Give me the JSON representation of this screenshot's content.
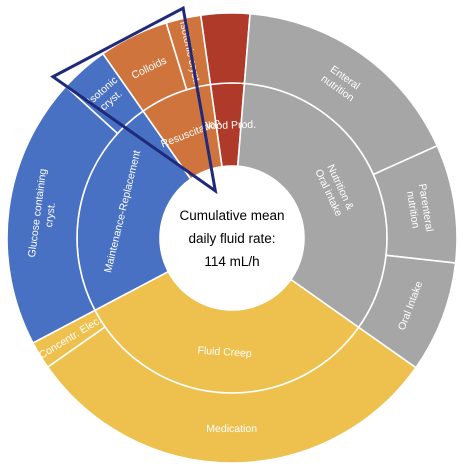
{
  "chart_data": {
    "type": "sunburst",
    "center_label": [
      "Cumulative mean",
      "daily fluid rate:",
      "114 mL/h"
    ],
    "colors": {
      "resuscitation": "#D0743E",
      "blood": "#B03A2A",
      "nutrition": "#A6A6A6",
      "fluid_creep": "#EEC14F",
      "maintenance": "#4871C4",
      "highlight_outline": "#1F2A7A"
    },
    "inner_ring": [
      {
        "id": "blood",
        "label": "Blood Prod.",
        "share": 3.5,
        "color": "#B03A2A"
      },
      {
        "id": "nutrition",
        "label": "Nutrition & Oral intake",
        "share": 33.5,
        "color": "#A6A6A6"
      },
      {
        "id": "fluid_creep",
        "label": "Fluid Creep",
        "share": 32.5,
        "color": "#EEC14F"
      },
      {
        "id": "maintenance",
        "label": "Maintenance-Replacement",
        "share": 23.0,
        "color": "#4871C4"
      },
      {
        "id": "resuscitation",
        "label": "Resuscitation",
        "share": 7.5,
        "color": "#D0743E"
      }
    ],
    "outer_ring": [
      {
        "label": "",
        "parent": "blood",
        "share": 3.5,
        "color": "#B03A2A"
      },
      {
        "label": "Enteral nutrition",
        "parent": "nutrition",
        "share": 17.0,
        "color": "#A6A6A6"
      },
      {
        "label": "Parenteral nutrition",
        "parent": "nutrition",
        "share": 8.5,
        "color": "#A6A6A6"
      },
      {
        "label": "Oral Intake",
        "parent": "nutrition",
        "share": 8.0,
        "color": "#A6A6A6"
      },
      {
        "label": "Medication",
        "parent": "fluid_creep",
        "share": 30.5,
        "color": "#EEC14F"
      },
      {
        "label": "Concentr. Elec.",
        "parent": "fluid_creep",
        "share": 2.0,
        "color": "#EEC14F"
      },
      {
        "label": "Glucose containing cryst.",
        "parent": "maintenance",
        "share": 19.5,
        "color": "#4871C4"
      },
      {
        "label": "Isotonic cryst.",
        "parent": "maintenance",
        "share": 3.5,
        "color": "#4871C4"
      },
      {
        "label": "Colloids",
        "parent": "resuscitation",
        "share": 5.0,
        "color": "#D0743E"
      },
      {
        "label": "Isotonic cryst.",
        "parent": "resuscitation",
        "share": 2.5,
        "color": "#D0743E"
      }
    ],
    "highlight": "resuscitation"
  }
}
